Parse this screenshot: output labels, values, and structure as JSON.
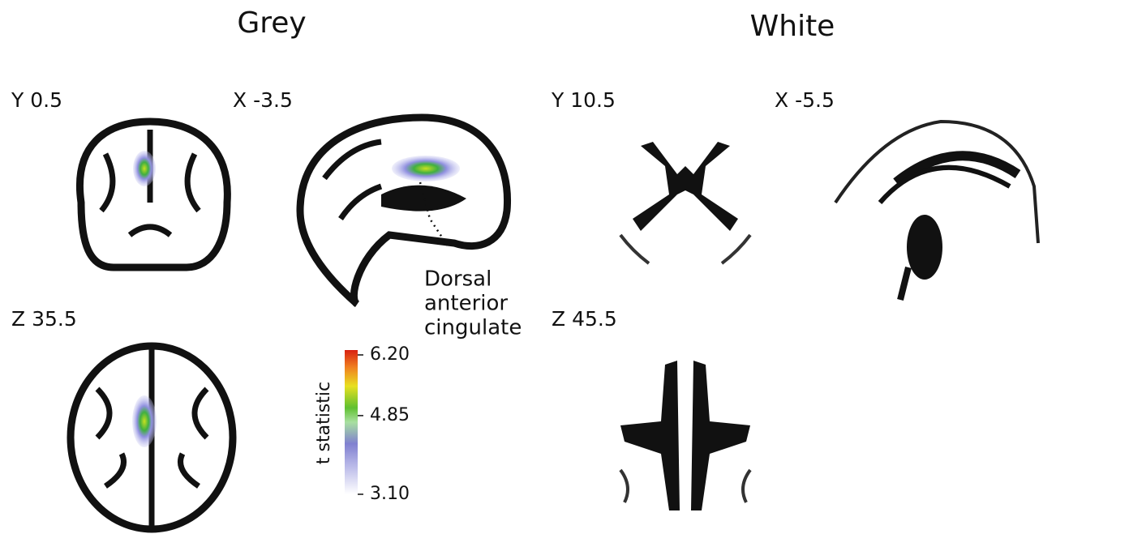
{
  "headers": {
    "grey": "Grey",
    "white": "White"
  },
  "grey_panels": {
    "coronal": "Y 0.5",
    "sagittal": "X -3.5",
    "axial": "Z 35.5"
  },
  "white_panels": {
    "coronal": "Y 10.5",
    "sagittal": "X -5.5",
    "axial": "Z 45.5"
  },
  "annotation": {
    "lines": [
      "Dorsal",
      "anterior",
      "cingulate"
    ]
  },
  "colorbar": {
    "label": "t statistic",
    "lim": [
      3.1,
      6.2
    ],
    "ticks": [
      {
        "value": 6.2,
        "label": "6.20"
      },
      {
        "value": 4.85,
        "label": "4.85"
      },
      {
        "value": 3.1,
        "label": "3.10"
      }
    ]
  }
}
